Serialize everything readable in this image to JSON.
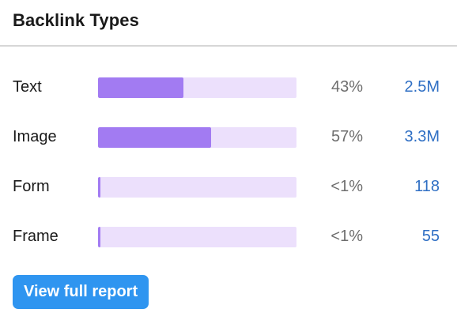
{
  "widget": {
    "title": "Backlink Types"
  },
  "rows": [
    {
      "label": "Text",
      "percent_text": "43%",
      "share": 0.43,
      "count": "2.5M"
    },
    {
      "label": "Image",
      "percent_text": "57%",
      "share": 0.57,
      "count": "3.3M"
    },
    {
      "label": "Form",
      "percent_text": "<1%",
      "share": 0.005,
      "count": "118"
    },
    {
      "label": "Frame",
      "percent_text": "<1%",
      "share": 0.005,
      "count": "55"
    }
  ],
  "actions": {
    "report_label": "View full report"
  },
  "colors": {
    "bar_fill": "#a27bf2",
    "bar_track": "#ece0fc",
    "link": "#2f6fc4",
    "button": "#2f95f0"
  }
}
